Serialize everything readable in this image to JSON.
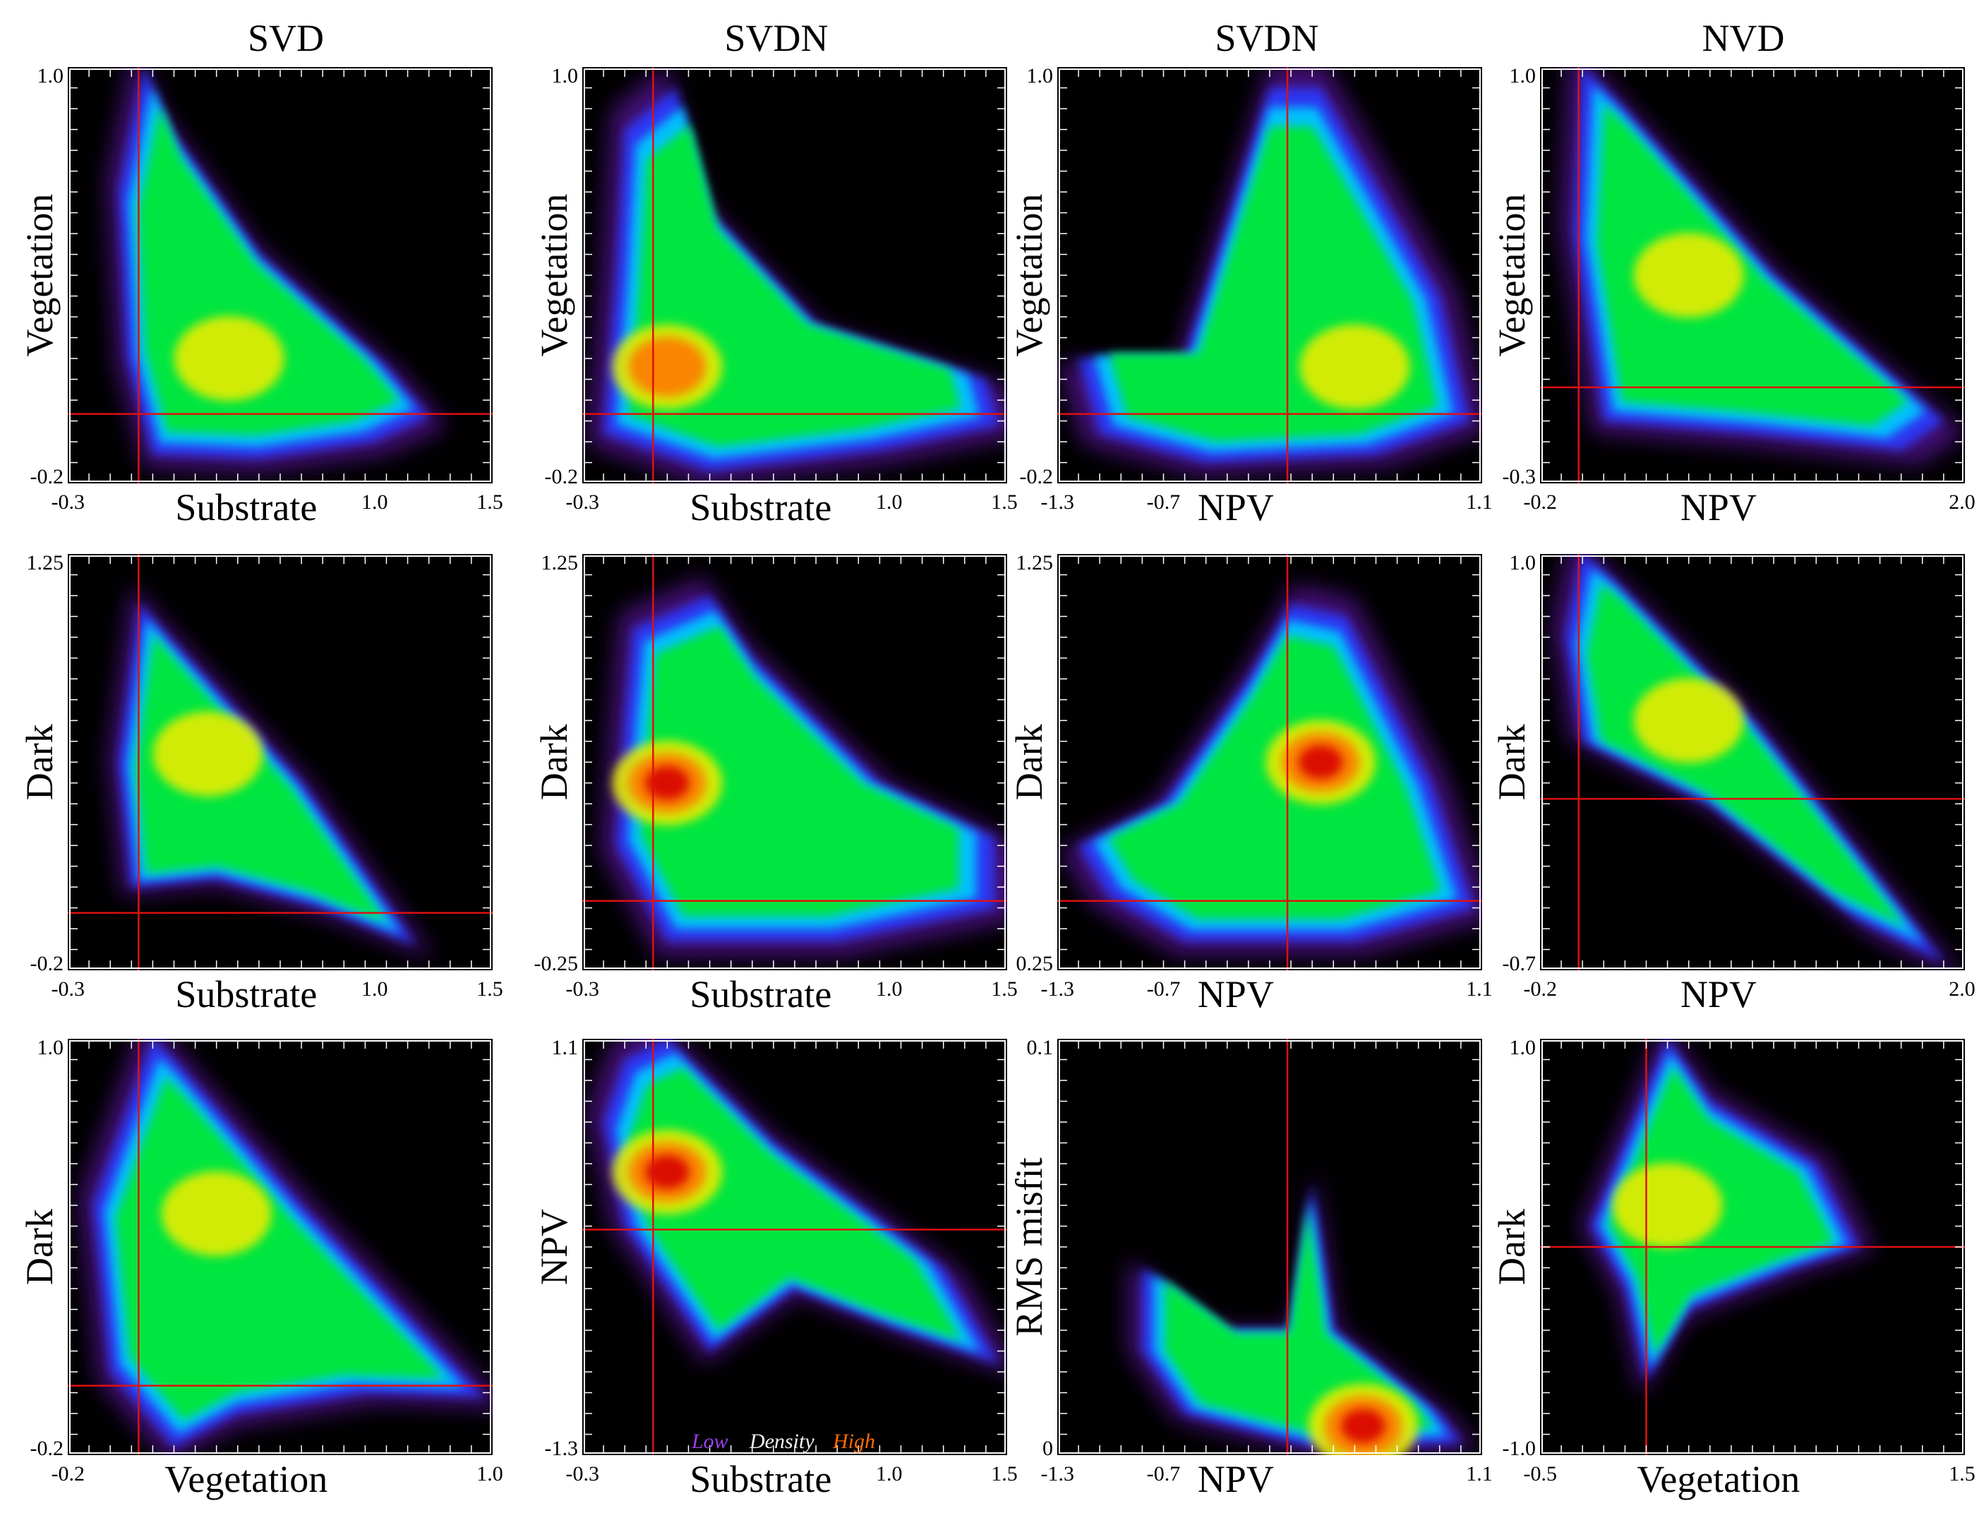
{
  "columns": [
    {
      "title": "SVD"
    },
    {
      "title": "SVDN"
    },
    {
      "title": "SVDN"
    },
    {
      "title": "NVD"
    }
  ],
  "legend": {
    "low": "Low",
    "mid": "Density",
    "high": "High"
  },
  "colors": {
    "background": "#000000",
    "crosshair": "#e01010",
    "frame": "#ffffff",
    "ramp": [
      "#7a1fd6",
      "#2a3bff",
      "#00c8ff",
      "#00e640",
      "#e8ec00",
      "#ff7a00",
      "#d80000"
    ]
  },
  "chart_data": [
    {
      "type": "heatmap",
      "column": "SVD",
      "xlabel": "Substrate",
      "ylabel": "Vegetation",
      "x_ticks": [
        "-0.3",
        "1.0",
        "1.5"
      ],
      "y_ticks": [
        "1.0",
        "-0.2"
      ],
      "xlim": [
        -0.3,
        1.5
      ],
      "ylim": [
        -0.2,
        1.0
      ],
      "origin": [
        0,
        0
      ],
      "density": "triangular cloud from vegetation apex (0,1) to substrate ~1.0, dense core near (0.35,0.15)"
    },
    {
      "type": "heatmap",
      "column": "SVDN",
      "xlabel": "Substrate",
      "ylabel": "Vegetation",
      "x_ticks": [
        "-0.3",
        "1.0",
        "1.5"
      ],
      "y_ticks": [
        "1.0",
        "-0.2"
      ],
      "xlim": [
        -0.3,
        1.5
      ],
      "ylim": [
        -0.2,
        1.0
      ],
      "origin": [
        0,
        0
      ],
      "density": "broad U-shaped cloud, high density near (-0.05,0.25)"
    },
    {
      "type": "heatmap",
      "column": "SVDN",
      "xlabel": "NPV",
      "ylabel": "Vegetation",
      "x_ticks": [
        "-1.3",
        "-0.7",
        "1.1"
      ],
      "y_ticks": [
        "1.0",
        "-0.2"
      ],
      "xlim": [
        -1.3,
        1.1
      ],
      "ylim": [
        -0.2,
        1.0
      ],
      "origin": [
        0,
        0
      ],
      "density": "triangular cloud, dense core near (0.35,0.15)"
    },
    {
      "type": "heatmap",
      "column": "NVD",
      "xlabel": "NPV",
      "ylabel": "Vegetation",
      "x_ticks": [
        "-0.2",
        "2.0"
      ],
      "y_ticks": [
        "1.0",
        "-0.3"
      ],
      "xlim": [
        -0.2,
        2.0
      ],
      "ylim": [
        -0.3,
        1.0
      ],
      "origin": [
        0,
        0
      ],
      "density": "triangle from vegetation apex to NPV ~1.9"
    },
    {
      "type": "heatmap",
      "column": "SVD",
      "xlabel": "Substrate",
      "ylabel": "Dark",
      "x_ticks": [
        "-0.3",
        "1.0",
        "1.5"
      ],
      "y_ticks": [
        "1.25",
        "-0.2"
      ],
      "xlim": [
        -0.3,
        1.5
      ],
      "ylim": [
        -0.2,
        1.25
      ],
      "origin": [
        0,
        0
      ],
      "density": "triangle from dark apex (0,1) to substrate ~1.2"
    },
    {
      "type": "heatmap",
      "column": "SVDN",
      "xlabel": "Substrate",
      "ylabel": "Dark",
      "x_ticks": [
        "-0.3",
        "1.0",
        "1.5"
      ],
      "y_ticks": [
        "1.25",
        "-0.25"
      ],
      "xlim": [
        -0.3,
        1.5
      ],
      "ylim": [
        -0.25,
        1.25
      ],
      "origin": [
        0,
        0
      ],
      "density": "broad cloud, high density near (-0.1,0.6)"
    },
    {
      "type": "heatmap",
      "column": "SVDN",
      "xlabel": "NPV",
      "ylabel": "Dark",
      "x_ticks": [
        "-1.3",
        "-0.7",
        "1.1"
      ],
      "y_ticks": [
        "1.25",
        "0.25"
      ],
      "xlim": [
        -1.3,
        1.1
      ],
      "ylim": [
        -0.25,
        1.25
      ],
      "origin": [
        0,
        0
      ],
      "density": "triangular cloud, high density near (0.25,0.6)"
    },
    {
      "type": "heatmap",
      "column": "NVD",
      "xlabel": "NPV",
      "ylabel": "Dark",
      "x_ticks": [
        "-0.2",
        "2.0"
      ],
      "y_ticks": [
        "1.0",
        "-0.7"
      ],
      "xlim": [
        -0.2,
        2.0
      ],
      "ylim": [
        -0.7,
        1.0
      ],
      "origin": [
        0,
        0
      ],
      "density": "triangle from dark apex (0,1) to NPV ~1.9"
    },
    {
      "type": "heatmap",
      "column": "SVD",
      "xlabel": "Vegetation",
      "ylabel": "Dark",
      "x_ticks": [
        "-0.2",
        "1.0"
      ],
      "y_ticks": [
        "1.0",
        "-0.2"
      ],
      "xlim": [
        -0.2,
        1.0
      ],
      "ylim": [
        -0.2,
        1.0
      ],
      "origin": [
        0,
        0
      ],
      "density": "triangle from dark apex (0,1) to vegetation 1.0"
    },
    {
      "type": "heatmap",
      "column": "SVDN",
      "xlabel": "Substrate",
      "ylabel": "NPV",
      "x_ticks": [
        "-0.3",
        "1.0",
        "1.5"
      ],
      "y_ticks": [
        "1.1",
        "-1.3"
      ],
      "xlim": [
        -0.3,
        1.5
      ],
      "ylim": [
        -1.3,
        1.1
      ],
      "origin": [
        0,
        0
      ],
      "density": "diagonal band from NPV apex down to substrate ~1.5, high density near (-0.15,0.4)"
    },
    {
      "type": "heatmap",
      "column": "SVDN",
      "xlabel": "NPV",
      "ylabel": "RMS misfit",
      "x_ticks": [
        "-1.3",
        "-0.7",
        "1.1"
      ],
      "y_ticks": [
        "0.1",
        "0"
      ],
      "xlim": [
        -1.3,
        1.1
      ],
      "ylim": [
        0,
        0.1
      ],
      "origin": [
        0,
        null
      ],
      "density": "low misfit along bottom, high density near NPV 0.4, misfit 0.01"
    },
    {
      "type": "heatmap",
      "column": "NVD",
      "xlabel": "Vegetation",
      "ylabel": "Dark",
      "x_ticks": [
        "-0.5",
        "1.5"
      ],
      "y_ticks": [
        "1.0",
        "-1.0"
      ],
      "xlim": [
        -0.5,
        1.5
      ],
      "ylim": [
        -1.0,
        1.0
      ],
      "origin": [
        0,
        0
      ],
      "density": "triangle from dark apex (0,1) to vegetation ~1.0"
    }
  ]
}
